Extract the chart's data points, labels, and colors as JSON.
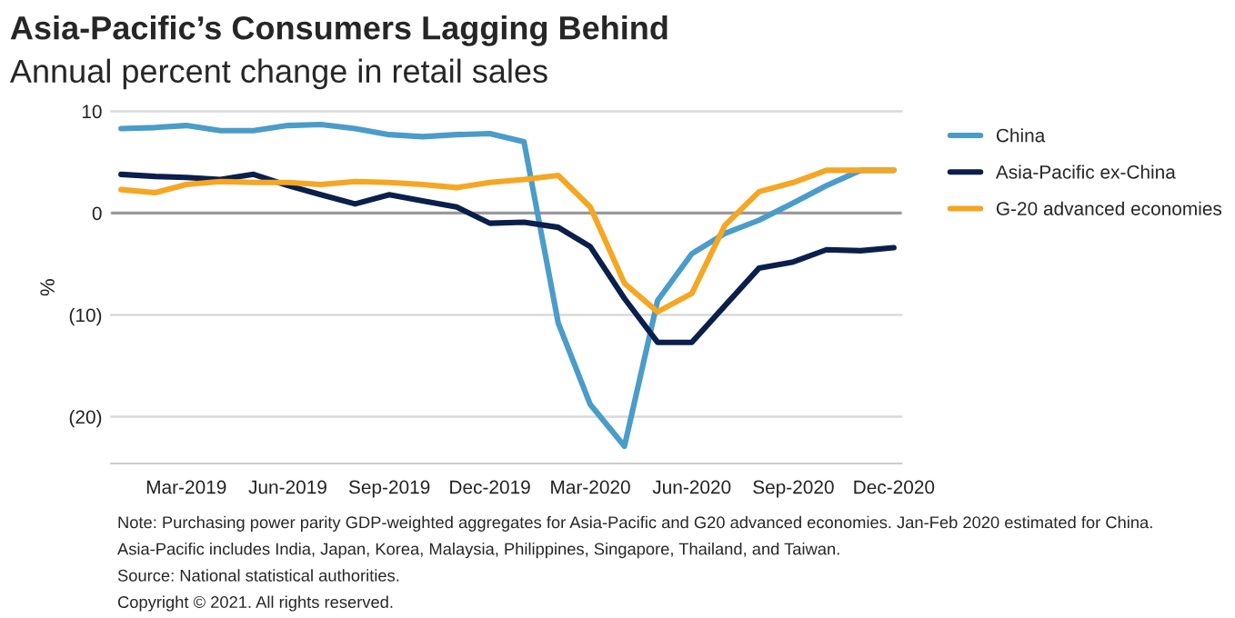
{
  "chart_data": {
    "type": "line",
    "title": "Asia-Pacific’s Consumers Lagging Behind",
    "subtitle": "Annual percent change in retail sales",
    "ylabel": "%",
    "x": [
      "2019-01",
      "2019-02",
      "2019-03",
      "2019-04",
      "2019-05",
      "2019-06",
      "2019-07",
      "2019-08",
      "2019-09",
      "2019-10",
      "2019-11",
      "2019-12",
      "2020-01",
      "2020-02",
      "2020-03",
      "2020-04",
      "2020-05",
      "2020-06",
      "2020-07",
      "2020-08",
      "2020-09",
      "2020-10",
      "2020-11",
      "2020-12"
    ],
    "series": [
      {
        "name": "China",
        "color": "#4a9cc9",
        "values": [
          8.3,
          8.4,
          8.6,
          8.1,
          8.1,
          8.6,
          8.7,
          8.3,
          7.7,
          7.5,
          7.7,
          7.8,
          7.0,
          -10.8,
          -18.8,
          -22.9,
          -8.6,
          -4.0,
          -2.0,
          -0.7,
          1.0,
          2.7,
          4.2,
          4.2
        ]
      },
      {
        "name": "Asia-Pacific ex-China",
        "color": "#0b1f4d",
        "values": [
          3.8,
          3.6,
          3.5,
          3.3,
          3.8,
          2.7,
          1.8,
          0.9,
          1.8,
          1.2,
          0.6,
          -1.0,
          -0.9,
          -1.4,
          -3.3,
          -8.4,
          -12.7,
          -12.7,
          -9.1,
          -5.4,
          -4.8,
          -3.6,
          -3.7,
          -3.4
        ]
      },
      {
        "name": "G-20 advanced economies",
        "color": "#f5a623",
        "values": [
          2.3,
          2.0,
          2.8,
          3.1,
          3.0,
          3.0,
          2.8,
          3.1,
          3.0,
          2.8,
          2.5,
          3.0,
          3.3,
          3.7,
          0.6,
          -6.9,
          -9.7,
          -7.9,
          -1.2,
          2.1,
          3.0,
          4.2,
          4.2,
          4.2
        ]
      }
    ],
    "xlim": [
      "2018-12-23",
      "2020-12-08"
    ],
    "xticks": [
      {
        "value": "2019-03",
        "label": "Mar-2019"
      },
      {
        "value": "2019-06",
        "label": "Jun-2019"
      },
      {
        "value": "2019-09",
        "label": "Sep-2019"
      },
      {
        "value": "2019-12",
        "label": "Dec-2019"
      },
      {
        "value": "2020-03",
        "label": "Mar-2020"
      },
      {
        "value": "2020-06",
        "label": "Jun-2020"
      },
      {
        "value": "2020-09",
        "label": "Sep-2020"
      },
      {
        "value": "2020-12",
        "label": "Dec-2020"
      }
    ],
    "ylim": [
      -24.6,
      10
    ],
    "yticks": [
      {
        "value": -20,
        "label": "(20)"
      },
      {
        "value": -10,
        "label": "(10)"
      },
      0,
      10
    ],
    "ref_lines": [
      {
        "axis": "y",
        "value": 0,
        "color": "#999999"
      }
    ],
    "grid": "y",
    "legend": "right",
    "marker": "none",
    "line_style": "solid",
    "annotations": [
      "Note: Purchasing power parity GDP-weighted aggregates for Asia-Pacific and G20 advanced economies. Jan-Feb 2020 estimated for China.",
      "Asia-Pacific includes India, Japan, Korea, Malaysia, Philippines, Singapore, Thailand, and Taiwan.",
      "Source: National statistical authorities.",
      "Copyright © 2021. All rights reserved."
    ]
  }
}
